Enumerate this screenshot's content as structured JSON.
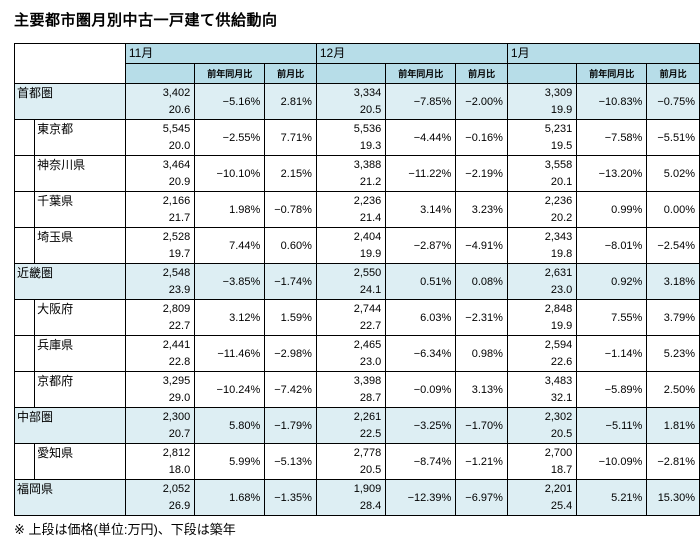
{
  "title": "主要都市圏月別中古一戸建て供給動向",
  "footnote": "※ 上段は価格(単位:万円)、下段は築年",
  "months": [
    "11月",
    "12月",
    "1月"
  ],
  "sub_headers": {
    "yoy": "前年同月比",
    "mom": "前月比"
  },
  "rows": [
    {
      "name": "首都圏",
      "level": 0,
      "data": [
        {
          "price": "3,402",
          "age": "20.6",
          "yoy": "−5.16%",
          "mom": "2.81%"
        },
        {
          "price": "3,334",
          "age": "20.5",
          "yoy": "−7.85%",
          "mom": "−2.00%"
        },
        {
          "price": "3,309",
          "age": "19.9",
          "yoy": "−10.83%",
          "mom": "−0.75%"
        }
      ]
    },
    {
      "name": "東京都",
      "level": 1,
      "data": [
        {
          "price": "5,545",
          "age": "20.0",
          "yoy": "−2.55%",
          "mom": "7.71%"
        },
        {
          "price": "5,536",
          "age": "19.3",
          "yoy": "−4.44%",
          "mom": "−0.16%"
        },
        {
          "price": "5,231",
          "age": "19.5",
          "yoy": "−7.58%",
          "mom": "−5.51%"
        }
      ]
    },
    {
      "name": "神奈川県",
      "level": 1,
      "data": [
        {
          "price": "3,464",
          "age": "20.9",
          "yoy": "−10.10%",
          "mom": "2.15%"
        },
        {
          "price": "3,388",
          "age": "21.2",
          "yoy": "−11.22%",
          "mom": "−2.19%"
        },
        {
          "price": "3,558",
          "age": "20.1",
          "yoy": "−13.20%",
          "mom": "5.02%"
        }
      ]
    },
    {
      "name": "千葉県",
      "level": 1,
      "data": [
        {
          "price": "2,166",
          "age": "21.7",
          "yoy": "1.98%",
          "mom": "−0.78%"
        },
        {
          "price": "2,236",
          "age": "21.4",
          "yoy": "3.14%",
          "mom": "3.23%"
        },
        {
          "price": "2,236",
          "age": "20.2",
          "yoy": "0.99%",
          "mom": "0.00%"
        }
      ]
    },
    {
      "name": "埼玉県",
      "level": 1,
      "data": [
        {
          "price": "2,528",
          "age": "19.7",
          "yoy": "7.44%",
          "mom": "0.60%"
        },
        {
          "price": "2,404",
          "age": "19.9",
          "yoy": "−2.87%",
          "mom": "−4.91%"
        },
        {
          "price": "2,343",
          "age": "19.8",
          "yoy": "−8.01%",
          "mom": "−2.54%"
        }
      ]
    },
    {
      "name": "近畿圏",
      "level": 0,
      "data": [
        {
          "price": "2,548",
          "age": "23.9",
          "yoy": "−3.85%",
          "mom": "−1.74%"
        },
        {
          "price": "2,550",
          "age": "24.1",
          "yoy": "0.51%",
          "mom": "0.08%"
        },
        {
          "price": "2,631",
          "age": "23.0",
          "yoy": "0.92%",
          "mom": "3.18%"
        }
      ]
    },
    {
      "name": "大阪府",
      "level": 1,
      "data": [
        {
          "price": "2,809",
          "age": "22.7",
          "yoy": "3.12%",
          "mom": "1.59%"
        },
        {
          "price": "2,744",
          "age": "22.7",
          "yoy": "6.03%",
          "mom": "−2.31%"
        },
        {
          "price": "2,848",
          "age": "19.9",
          "yoy": "7.55%",
          "mom": "3.79%"
        }
      ]
    },
    {
      "name": "兵庫県",
      "level": 1,
      "data": [
        {
          "price": "2,441",
          "age": "22.8",
          "yoy": "−11.46%",
          "mom": "−2.98%"
        },
        {
          "price": "2,465",
          "age": "23.0",
          "yoy": "−6.34%",
          "mom": "0.98%"
        },
        {
          "price": "2,594",
          "age": "22.6",
          "yoy": "−1.14%",
          "mom": "5.23%"
        }
      ]
    },
    {
      "name": "京都府",
      "level": 1,
      "data": [
        {
          "price": "3,295",
          "age": "29.0",
          "yoy": "−10.24%",
          "mom": "−7.42%"
        },
        {
          "price": "3,398",
          "age": "28.7",
          "yoy": "−0.09%",
          "mom": "3.13%"
        },
        {
          "price": "3,483",
          "age": "32.1",
          "yoy": "−5.89%",
          "mom": "2.50%"
        }
      ]
    },
    {
      "name": "中部圏",
      "level": 0,
      "data": [
        {
          "price": "2,300",
          "age": "20.7",
          "yoy": "5.80%",
          "mom": "−1.79%"
        },
        {
          "price": "2,261",
          "age": "22.5",
          "yoy": "−3.25%",
          "mom": "−1.70%"
        },
        {
          "price": "2,302",
          "age": "20.5",
          "yoy": "−5.11%",
          "mom": "1.81%"
        }
      ]
    },
    {
      "name": "愛知県",
      "level": 1,
      "data": [
        {
          "price": "2,812",
          "age": "18.0",
          "yoy": "5.99%",
          "mom": "−5.13%"
        },
        {
          "price": "2,778",
          "age": "20.5",
          "yoy": "−8.74%",
          "mom": "−1.21%"
        },
        {
          "price": "2,700",
          "age": "18.7",
          "yoy": "−10.09%",
          "mom": "−2.81%"
        }
      ]
    },
    {
      "name": "福岡県",
      "level": 0,
      "data": [
        {
          "price": "2,052",
          "age": "26.9",
          "yoy": "1.68%",
          "mom": "−1.35%"
        },
        {
          "price": "1,909",
          "age": "28.4",
          "yoy": "−12.39%",
          "mom": "−6.97%"
        },
        {
          "price": "2,201",
          "age": "25.4",
          "yoy": "5.21%",
          "mom": "15.30%"
        }
      ]
    }
  ]
}
